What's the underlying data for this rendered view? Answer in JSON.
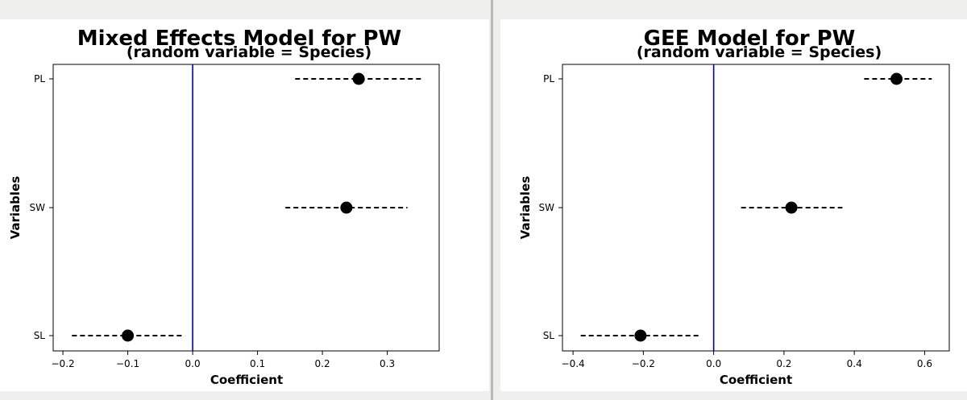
{
  "chart_data": [
    {
      "type": "scatter",
      "title": "Mixed Effects Model for PW",
      "subtitle": "(random variable = Species)",
      "xlabel": "Coefficient",
      "ylabel": "Variables",
      "xlim": [
        -0.215,
        0.38
      ],
      "xticks": [
        "−0.2",
        "−0.1",
        "0.0",
        "0.1",
        "0.2",
        "0.3"
      ],
      "xtick_values": [
        -0.2,
        -0.1,
        0.0,
        0.1,
        0.2,
        0.3
      ],
      "categories": [
        "PL",
        "SW",
        "SL"
      ],
      "values": [
        0.256,
        0.237,
        -0.1
      ],
      "ci_lower": [
        0.158,
        0.143,
        -0.186
      ],
      "ci_upper": [
        0.354,
        0.331,
        -0.012
      ],
      "reference_line": 0.0,
      "reference_color": "#0000bb",
      "grid": false
    },
    {
      "type": "scatter",
      "title": "GEE Model for PW",
      "subtitle": "(random variable = Species)",
      "xlabel": "Coefficient",
      "ylabel": "Variables",
      "xlim": [
        -0.43,
        0.67
      ],
      "xticks": [
        "−0.4",
        "−0.2",
        "0.0",
        "0.2",
        "0.4",
        "0.6"
      ],
      "xtick_values": [
        -0.4,
        -0.2,
        0.0,
        0.2,
        0.4,
        0.6
      ],
      "categories": [
        "PL",
        "SW",
        "SL"
      ],
      "values": [
        0.52,
        0.221,
        -0.208
      ],
      "ci_lower": [
        0.428,
        0.078,
        -0.378
      ],
      "ci_upper": [
        0.62,
        0.366,
        -0.038
      ],
      "reference_line": 0.0,
      "reference_color": "#0000bb",
      "grid": false
    }
  ]
}
